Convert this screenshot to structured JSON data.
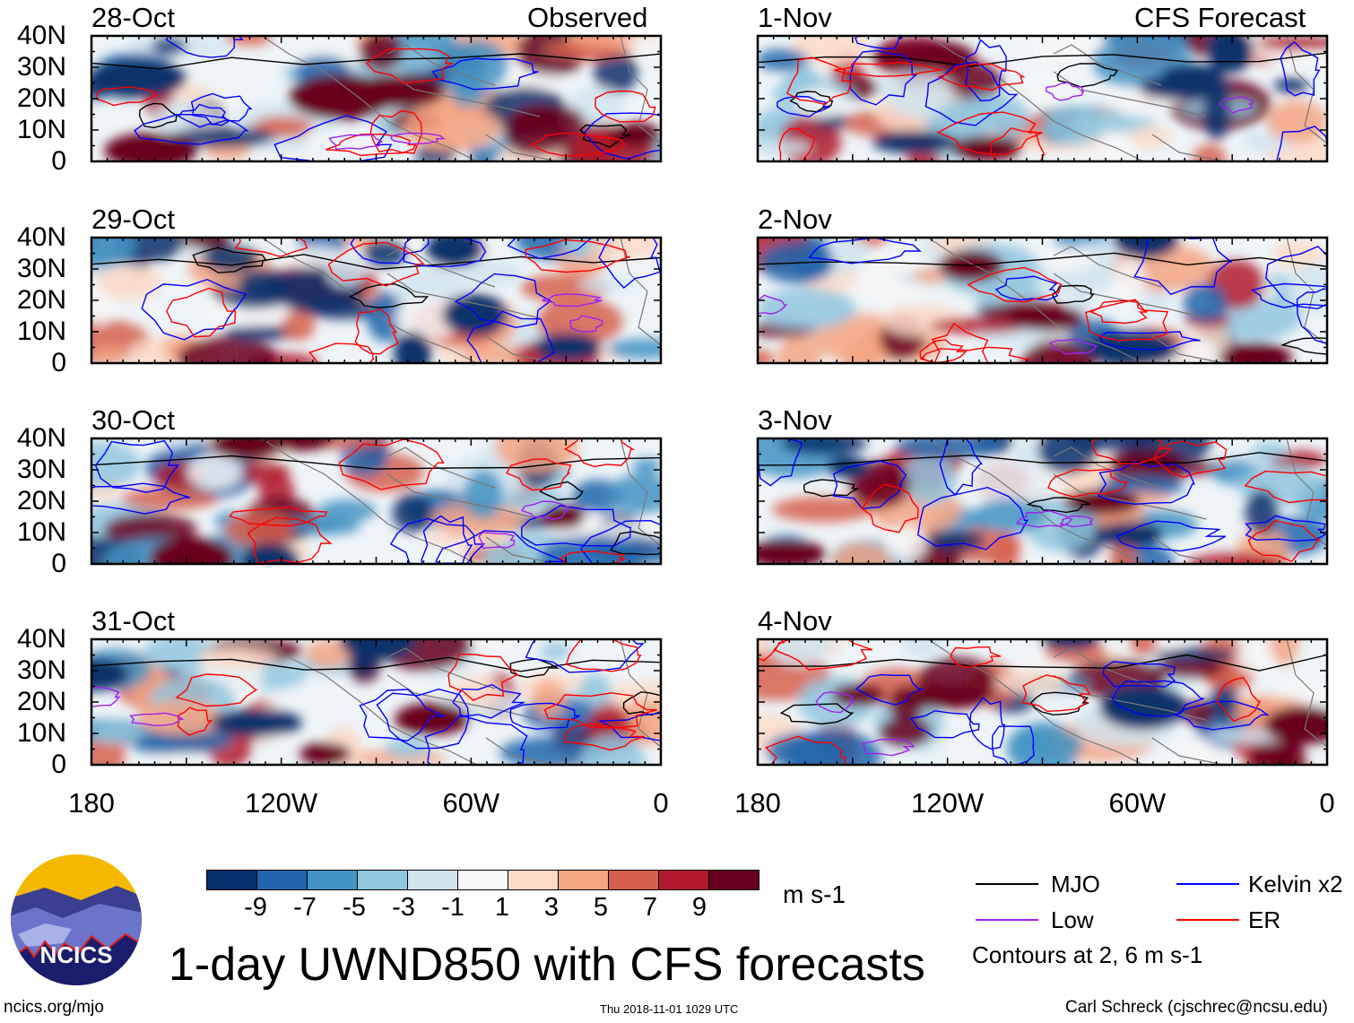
{
  "figure": {
    "title": "1-day UWND850 with CFS forecasts",
    "left_header": "Observed",
    "right_header": "CFS Forecast",
    "units": "m s-1",
    "footer_left": "ncics.org/mjo",
    "footer_center": "Thu 2018-11-01 1029 UTC",
    "footer_right": "Carl Schreck (cjschrec@ncsu.edu)",
    "logo_text": "NCICS"
  },
  "panels_left": [
    {
      "date": "28-Oct"
    },
    {
      "date": "29-Oct"
    },
    {
      "date": "30-Oct"
    },
    {
      "date": "31-Oct"
    }
  ],
  "panels_right": [
    {
      "date": "1-Nov"
    },
    {
      "date": "2-Nov"
    },
    {
      "date": "3-Nov"
    },
    {
      "date": "4-Nov"
    }
  ],
  "axes": {
    "lat_labels": [
      "40N",
      "30N",
      "20N",
      "10N",
      "0"
    ],
    "lon_labels": [
      "180",
      "120W",
      "60W",
      "0"
    ]
  },
  "colorbar": {
    "colors": [
      "#08306b",
      "#2166ac",
      "#4393c3",
      "#92c5de",
      "#d1e5f0",
      "#f7f7f7",
      "#fddbc7",
      "#f4a582",
      "#d6604d",
      "#b2182b",
      "#67001f"
    ],
    "labels": [
      "-9",
      "-7",
      "-5",
      "-3",
      "-1",
      "1",
      "3",
      "5",
      "7",
      "9"
    ]
  },
  "legend": {
    "items": [
      {
        "label": "MJO",
        "color": "#000000"
      },
      {
        "label": "Kelvin x2",
        "color": "#0000ff"
      },
      {
        "label": "Low",
        "color": "#a020f0"
      },
      {
        "label": "ER",
        "color": "#ff0000"
      }
    ],
    "note": "Contours at 2, 6 m s-1"
  }
}
